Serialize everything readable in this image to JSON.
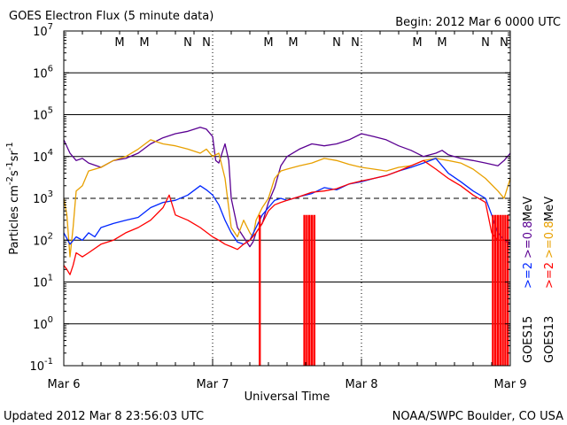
{
  "chart_data": {
    "type": "line",
    "title": "GOES Electron Flux (5 minute data)",
    "begin": "Begin: 2012 Mar 6 0000 UTC",
    "xlabel": "Universal Time",
    "ylabel": "Particles cm⁻²s⁻¹sr⁻¹",
    "ylabel_parts": [
      "Particles cm",
      "-2",
      "s",
      "-1",
      "sr",
      "-1"
    ],
    "yscale": "log",
    "ylim": [
      0.1,
      10000000
    ],
    "xlim": [
      0,
      72
    ],
    "x_unit": "hours since 2012 Mar 6 0000 UTC",
    "y_ticks": [
      {
        "value": 10000000,
        "base": "10",
        "exp": "7"
      },
      {
        "value": 1000000,
        "base": "10",
        "exp": "6"
      },
      {
        "value": 100000,
        "base": "10",
        "exp": "5"
      },
      {
        "value": 10000,
        "base": "10",
        "exp": "4"
      },
      {
        "value": 1000,
        "base": "10",
        "exp": "3"
      },
      {
        "value": 100,
        "base": "10",
        "exp": "2"
      },
      {
        "value": 10,
        "base": "10",
        "exp": "1"
      },
      {
        "value": 1,
        "base": "10",
        "exp": "0"
      },
      {
        "value": 0.1,
        "base": "10",
        "exp": "-1"
      }
    ],
    "x_ticks": [
      {
        "value": 0,
        "label": "Mar 6"
      },
      {
        "value": 24,
        "label": "Mar 7"
      },
      {
        "value": 48,
        "label": "Mar 8"
      },
      {
        "value": 72,
        "label": "Mar 9"
      }
    ],
    "threshold_line": 1000,
    "local_time_markers": [
      {
        "x": 9,
        "label": "M",
        "color": "#ff0000"
      },
      {
        "x": 13,
        "label": "M",
        "color": "#0000ff"
      },
      {
        "x": 20,
        "label": "N",
        "color": "#ff0000"
      },
      {
        "x": 23,
        "label": "N",
        "color": "#0000ff"
      },
      {
        "x": 33,
        "label": "M",
        "color": "#ff0000"
      },
      {
        "x": 37,
        "label": "M",
        "color": "#0000ff"
      },
      {
        "x": 44,
        "label": "N",
        "color": "#ff0000"
      },
      {
        "x": 47,
        "label": "N",
        "color": "#0000ff"
      },
      {
        "x": 57,
        "label": "M",
        "color": "#ff0000"
      },
      {
        "x": 61,
        "label": "M",
        "color": "#0000ff"
      },
      {
        "x": 68,
        "label": "N",
        "color": "#ff0000"
      },
      {
        "x": 71,
        "label": "N",
        "color": "#0000ff"
      }
    ],
    "series": [
      {
        "name": "GOES15 >=0.8 MeV",
        "color": "#5a0092",
        "x": [
          0,
          1,
          2,
          3,
          4,
          6,
          8,
          10,
          12,
          14,
          16,
          18,
          20,
          22,
          23,
          24,
          24.5,
          25,
          26,
          26.6,
          27,
          28,
          30,
          30.5,
          31,
          32,
          33,
          34,
          35,
          36,
          38,
          40,
          42,
          44,
          46,
          48,
          50,
          52,
          54,
          56,
          58,
          60,
          61,
          62,
          64,
          66,
          68,
          70,
          71,
          72
        ],
        "y": [
          25000,
          12000,
          8000,
          9000,
          7000,
          5500,
          8000,
          9000,
          12000,
          20000,
          28000,
          35000,
          40000,
          50000,
          45000,
          30000,
          8000,
          7000,
          20000,
          8000,
          1000,
          200,
          70,
          90,
          150,
          250,
          800,
          1800,
          6000,
          10000,
          15000,
          20000,
          18000,
          20000,
          25000,
          35000,
          30000,
          25000,
          18000,
          14000,
          10000,
          12000,
          14000,
          11000,
          9000,
          8000,
          7000,
          6000,
          8000,
          12000
        ]
      },
      {
        "name": "GOES13 >=0.8 MeV",
        "color": "#e8a000",
        "x": [
          0,
          0.5,
          1,
          1.5,
          2,
          3,
          4,
          6,
          8,
          10,
          12,
          14,
          16,
          18,
          20,
          22,
          23,
          24,
          25,
          26,
          27,
          28,
          29,
          30,
          30.5,
          31,
          32,
          33,
          34,
          35,
          36,
          38,
          40,
          42,
          44,
          46,
          48,
          50,
          52,
          54,
          56,
          58,
          60,
          62,
          64,
          66,
          68,
          70,
          71,
          72
        ],
        "y": [
          1000,
          400,
          40,
          200,
          1500,
          2000,
          4500,
          5500,
          8000,
          10000,
          15000,
          25000,
          20000,
          18000,
          15000,
          12000,
          15000,
          10000,
          12000,
          3000,
          200,
          120,
          300,
          150,
          120,
          300,
          600,
          1000,
          3000,
          4500,
          5000,
          6000,
          7000,
          9000,
          8000,
          6500,
          5500,
          5000,
          4500,
          5500,
          6000,
          8000,
          9000,
          8000,
          7000,
          5000,
          3000,
          1500,
          1000,
          3000
        ]
      },
      {
        "name": "GOES15 >=2 MeV",
        "color": "#0026ff",
        "x": [
          0,
          1,
          2,
          3,
          4,
          5,
          6,
          8,
          10,
          12,
          14,
          16,
          18,
          20,
          22,
          23,
          24,
          25,
          26,
          27,
          28,
          29,
          30,
          31,
          32,
          33,
          34,
          35,
          36,
          38,
          40,
          42,
          44,
          46,
          48,
          50,
          52,
          54,
          56,
          58,
          60,
          62,
          64,
          66,
          68,
          69,
          70,
          71,
          72
        ],
        "y": [
          150,
          80,
          120,
          100,
          150,
          120,
          200,
          250,
          300,
          350,
          600,
          800,
          900,
          1200,
          2000,
          1600,
          1200,
          700,
          300,
          150,
          90,
          80,
          100,
          200,
          400,
          600,
          900,
          1000,
          900,
          1100,
          1300,
          1800,
          1600,
          2200,
          2500,
          3000,
          3500,
          4500,
          5500,
          7000,
          9000,
          4000,
          2500,
          1500,
          1000,
          400,
          150,
          100,
          80
        ]
      },
      {
        "name": "GOES13 >=2 MeV",
        "color": "#ff0000",
        "x": [
          0,
          0.5,
          1,
          1.5,
          2,
          3,
          4,
          6,
          8,
          10,
          12,
          14,
          16,
          17,
          18,
          20,
          22,
          24,
          25,
          26,
          27,
          28,
          29,
          30,
          31,
          32,
          33,
          34,
          35,
          36,
          38,
          40,
          42,
          44,
          46,
          48,
          50,
          52,
          54,
          56,
          58,
          60,
          62,
          64,
          66,
          68,
          69,
          70,
          71,
          72
        ],
        "y": [
          25,
          20,
          15,
          25,
          50,
          40,
          50,
          80,
          100,
          150,
          200,
          300,
          600,
          1200,
          400,
          300,
          200,
          120,
          100,
          80,
          70,
          60,
          80,
          100,
          150,
          250,
          500,
          700,
          800,
          900,
          1100,
          1400,
          1500,
          1700,
          2200,
          2600,
          3000,
          3500,
          4500,
          6000,
          8000,
          5000,
          3000,
          2000,
          1200,
          800,
          150,
          100,
          100,
          100
        ]
      }
    ],
    "dropouts": [
      {
        "x": [
          38.8,
          39.2,
          39.6,
          40.0,
          40.4
        ],
        "to": 0.1,
        "color": "#ff0000"
      },
      {
        "x": [
          69.2,
          69.6,
          70.0,
          70.4,
          70.8,
          71.2,
          71.6
        ],
        "to": 0.1,
        "color": "#ff0000"
      },
      {
        "x": [
          31.6
        ],
        "to": 0.1,
        "color": "#ff0000"
      }
    ],
    "legend": {
      "placement": "right",
      "groups": [
        {
          "sat": "GOES15",
          "items": [
            {
              "label": ">=2",
              "color": "#0026ff"
            },
            {
              "label": ">=0.8",
              "color": "#5a0092"
            },
            {
              "label": "MeV",
              "color": "#000000"
            }
          ]
        },
        {
          "sat": "GOES13",
          "items": [
            {
              "label": ">=2",
              "color": "#ff0000"
            },
            {
              "label": ">=0.8",
              "color": "#e8a000"
            },
            {
              "label": "MeV",
              "color": "#000000"
            }
          ]
        }
      ]
    }
  },
  "footer": {
    "updated": "Updated 2012 Mar  8 23:56:03 UTC",
    "credit": "NOAA/SWPC Boulder, CO USA"
  }
}
